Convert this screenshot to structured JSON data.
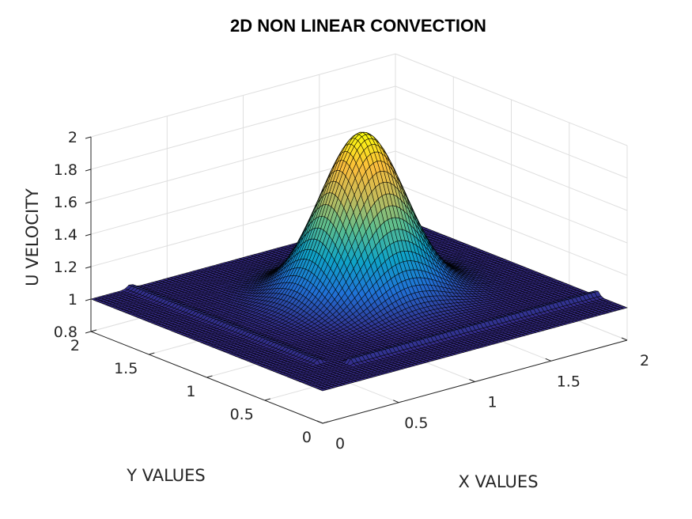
{
  "chart_data": {
    "type": "surface",
    "title": "2D NON LINEAR CONVECTION",
    "xlabel": "X VALUES",
    "ylabel": "Y VALUES",
    "zlabel": "U VELOCITY",
    "xlim": [
      0,
      2
    ],
    "ylim": [
      0,
      2
    ],
    "zlim": [
      0.8,
      2
    ],
    "x_ticks": [
      "0",
      "0.5",
      "1",
      "1.5",
      "2"
    ],
    "y_ticks": [
      "0",
      "0.5",
      "1",
      "1.5",
      "2"
    ],
    "z_ticks": [
      "0.8",
      "1",
      "1.2",
      "1.4",
      "1.6",
      "1.8",
      "2"
    ],
    "grid": true,
    "colormap": "parula",
    "colors": [
      "#352a87",
      "#2072d7",
      "#0fa3c7",
      "#5cbe8f",
      "#c5bb5a",
      "#fbbd3a",
      "#f9fb0e"
    ],
    "surface": {
      "baseline": 1.0,
      "peak": 2.0,
      "peak_center": [
        1.1,
        1.1
      ],
      "peak_width": [
        0.32,
        0.32
      ],
      "grid_points": 81
    }
  }
}
